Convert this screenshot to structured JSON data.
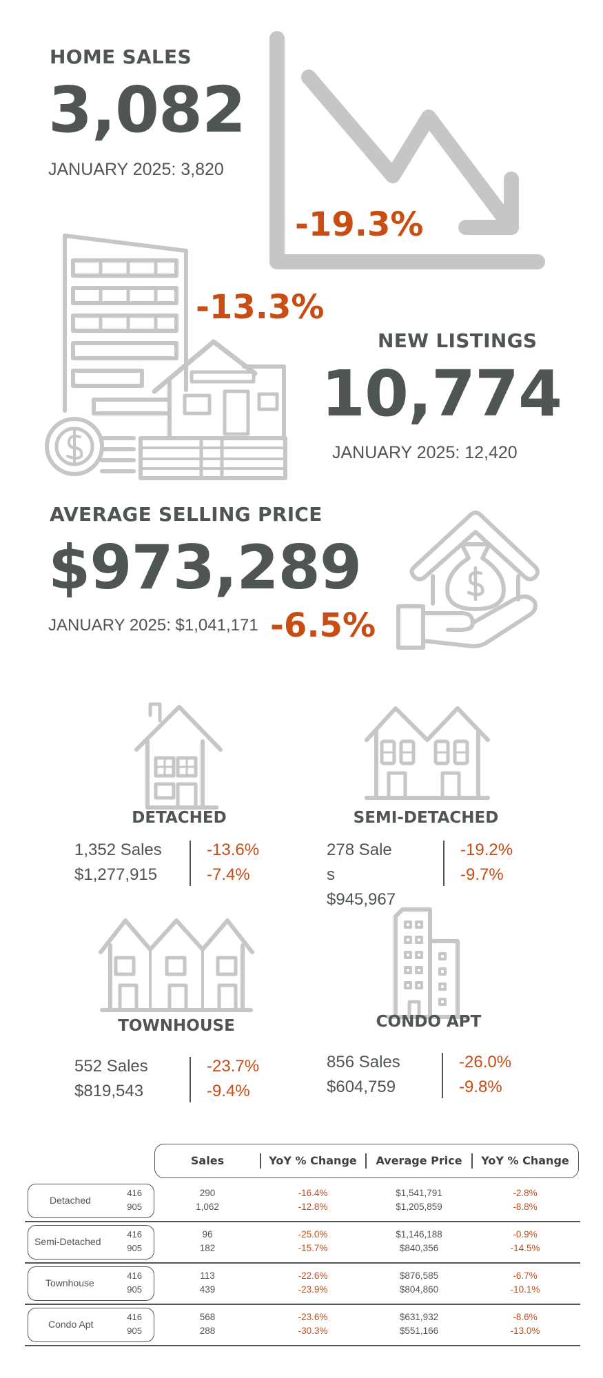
{
  "colors": {
    "text": "#4f5553",
    "accent": "#c94c12",
    "icon": "#c6c6c6"
  },
  "home_sales": {
    "title": "HOME SALES",
    "value": "3,082",
    "previous": "JANUARY 2025: 3,820",
    "change": "-19.3%",
    "icon": "chart-down-icon"
  },
  "new_listings": {
    "title": "NEW LISTINGS",
    "value": "10,774",
    "previous": "JANUARY 2025: 12,420",
    "change": "-13.3%",
    "icon": "buildings-house-coins-icon"
  },
  "avg_price": {
    "title": "AVERAGE SELLING PRICE",
    "value": "$973,289",
    "previous": "JANUARY 2025: $1,041,171",
    "change": "-6.5%",
    "icon": "hand-house-moneybag-icon"
  },
  "categories": [
    {
      "name": "DETACHED",
      "sales": "1,352 Sales",
      "price": "$1,277,915",
      "sales_change": "-13.6%",
      "price_change": "-7.4%",
      "icon": "detached-house-icon"
    },
    {
      "name": "SEMI-DETACHED",
      "sales_a": "278 Sale",
      "sales_b": "s",
      "price": "$945,967",
      "sales_change": "-19.2%",
      "price_change": "-9.7%",
      "icon": "semi-detached-icon"
    },
    {
      "name": "TOWNHOUSE",
      "sales": "552 Sales",
      "price": "$819,543",
      "sales_change": "-23.7%",
      "price_change": "-9.4%",
      "icon": "townhouse-icon"
    },
    {
      "name": "CONDO APT",
      "sales": "856 Sales",
      "price": "$604,759",
      "sales_change": "-26.0%",
      "price_change": "-9.8%",
      "icon": "condo-building-icon"
    }
  ],
  "table": {
    "headers": [
      "Sales",
      "YoY % Change",
      "Average Price",
      "YoY % Change"
    ],
    "rows": [
      {
        "type": "Detached",
        "codes": [
          "416",
          "905"
        ],
        "sales": [
          "290",
          "1,062"
        ],
        "sales_yoy": [
          "-16.4%",
          "-12.8%"
        ],
        "price": [
          "$1,541,791",
          "$1,205,859"
        ],
        "price_yoy": [
          "-2.8%",
          "-8.8%"
        ]
      },
      {
        "type": "Semi-Detached",
        "codes": [
          "416",
          "905"
        ],
        "sales": [
          "96",
          "182"
        ],
        "sales_yoy": [
          "-25.0%",
          "-15.7%"
        ],
        "price": [
          "$1,146,188",
          "$840,356"
        ],
        "price_yoy": [
          "-0.9%",
          "-14.5%"
        ]
      },
      {
        "type": "Townhouse",
        "codes": [
          "416",
          "905"
        ],
        "sales": [
          "113",
          "439"
        ],
        "sales_yoy": [
          "-22.6%",
          "-23.9%"
        ],
        "price": [
          "$876,585",
          "$804,860"
        ],
        "price_yoy": [
          "-6.7%",
          "-10.1%"
        ]
      },
      {
        "type": "Condo Apt",
        "codes": [
          "416",
          "905"
        ],
        "sales": [
          "568",
          "288"
        ],
        "sales_yoy": [
          "-23.6%",
          "-30.3%"
        ],
        "price": [
          "$631,932",
          "$551,166"
        ],
        "price_yoy": [
          "-8.6%",
          "-13.0%"
        ]
      }
    ]
  }
}
